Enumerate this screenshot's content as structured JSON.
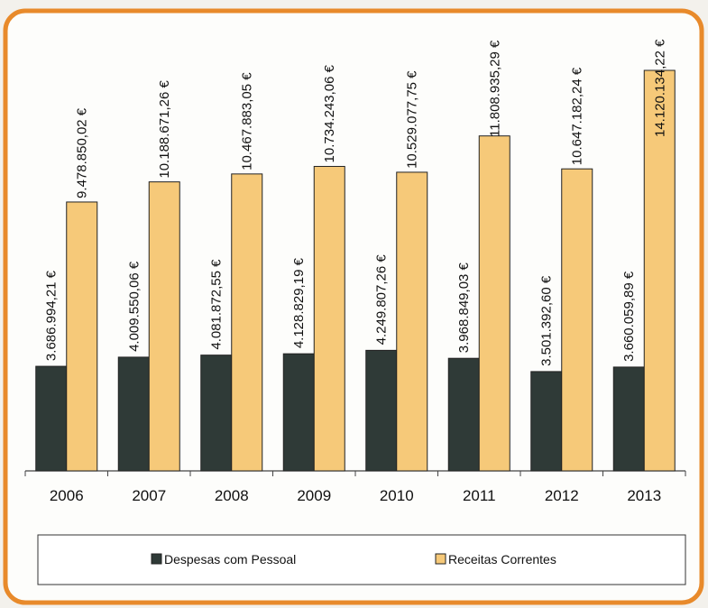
{
  "chart_data": {
    "type": "bar",
    "categories": [
      "2006",
      "2007",
      "2008",
      "2009",
      "2010",
      "2011",
      "2012",
      "2013"
    ],
    "series": [
      {
        "name": "Despesas com Pessoal",
        "color": "#2f3a37",
        "values": [
          3686994.21,
          4009550.06,
          4081872.55,
          4128829.19,
          4249807.26,
          3968849.03,
          3501392.6,
          3660059.89
        ],
        "value_labels": [
          "3.686.994,21 €",
          "4.009.550,06 €",
          "4.081.872,55 €",
          "4.128.829,19 €",
          "4.249.807,26 €",
          "3.968.849,03 €",
          "3.501.392,60 €",
          "3.660.059,89 €"
        ]
      },
      {
        "name": "Receitas Correntes",
        "color": "#f6c979",
        "values": [
          9478850.02,
          10188671.26,
          10467883.05,
          10734243.06,
          10529077.75,
          11808935.29,
          10647182.24,
          14120134.22
        ],
        "value_labels": [
          "9.478.850,02 €",
          "10.188.671,26 €",
          "10.467.883,05 €",
          "10.734.243,06 €",
          "10.529.077,75 €",
          "11.808.935,29 €",
          "10.647.182,24 €",
          "14.120.134,22 €"
        ]
      }
    ],
    "legend": "bottom"
  }
}
